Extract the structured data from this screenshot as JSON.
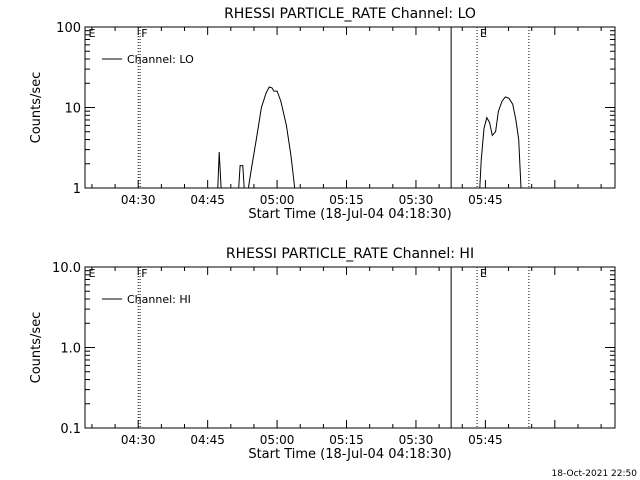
{
  "footer_timestamp": "18-Oct-2021 22:50",
  "chart_data": [
    {
      "type": "line",
      "title": "RHESSI PARTICLE_RATE Channel: LO",
      "xlabel": "Start Time (18-Jul-04 04:18:30)",
      "ylabel": "Counts/sec",
      "y_scale": "log",
      "xlim_min": [
        258.5,
        373
      ],
      "ylim": [
        1,
        100
      ],
      "x_ticks": [
        {
          "min": 270,
          "label": "04:30"
        },
        {
          "min": 285,
          "label": "04:45"
        },
        {
          "min": 300,
          "label": "05:00"
        },
        {
          "min": 315,
          "label": "05:15"
        },
        {
          "min": 330,
          "label": "05:30"
        },
        {
          "min": 345,
          "label": "05:45"
        }
      ],
      "y_ticks": [
        {
          "value": 1,
          "label": "1"
        },
        {
          "value": 10,
          "label": "10"
        },
        {
          "value": 100,
          "label": "100"
        }
      ],
      "grid": false,
      "legend": {
        "position": "top-left",
        "label": "Channel: LO"
      },
      "annotations": [
        {
          "x_min": 258.6,
          "label": "E",
          "style": "none"
        },
        {
          "x_min": 270.0,
          "label": "F",
          "style": "dotted"
        },
        {
          "x_min": 270.4,
          "label": "",
          "style": "dotted"
        },
        {
          "x_min": 337.6,
          "label": "",
          "style": "solid"
        },
        {
          "x_min": 343.2,
          "label": "E",
          "style": "dotted"
        },
        {
          "x_min": 354.4,
          "label": "",
          "style": "dotted"
        }
      ],
      "series": [
        {
          "name": "Channel: LO",
          "segments": [
            [
              [
                287.2,
                1
              ],
              [
                287.5,
                2.8
              ],
              [
                287.9,
                1
              ]
            ],
            [
              [
                291.7,
                1
              ],
              [
                292.0,
                1.9
              ],
              [
                292.6,
                1.9
              ],
              [
                292.9,
                1
              ]
            ],
            [
              [
                293.8,
                1
              ],
              [
                294.5,
                1.8
              ],
              [
                295.5,
                4
              ],
              [
                296.6,
                10
              ],
              [
                297.6,
                15
              ],
              [
                298.3,
                18
              ],
              [
                298.9,
                17.5
              ],
              [
                299.3,
                16
              ],
              [
                300.0,
                16
              ],
              [
                300.8,
                12
              ],
              [
                302.0,
                6
              ],
              [
                303.0,
                2.5
              ],
              [
                303.8,
                1
              ]
            ],
            [
              [
                343.8,
                1
              ],
              [
                344.1,
                2.2
              ],
              [
                344.7,
                5.5
              ],
              [
                345.3,
                7.5
              ],
              [
                345.9,
                6.5
              ],
              [
                346.5,
                4.5
              ],
              [
                347.2,
                5
              ],
              [
                347.8,
                9
              ],
              [
                348.6,
                12
              ],
              [
                349.3,
                13.5
              ],
              [
                350.1,
                13
              ],
              [
                350.9,
                11
              ],
              [
                351.6,
                7
              ],
              [
                352.2,
                4
              ],
              [
                352.7,
                1
              ]
            ]
          ]
        }
      ]
    },
    {
      "type": "line",
      "title": "RHESSI PARTICLE_RATE Channel: HI",
      "xlabel": "Start Time (18-Jul-04 04:18:30)",
      "ylabel": "Counts/sec",
      "y_scale": "log",
      "xlim_min": [
        258.5,
        373
      ],
      "ylim": [
        0.1,
        10
      ],
      "x_ticks": [
        {
          "min": 270,
          "label": "04:30"
        },
        {
          "min": 285,
          "label": "04:45"
        },
        {
          "min": 300,
          "label": "05:00"
        },
        {
          "min": 315,
          "label": "05:15"
        },
        {
          "min": 330,
          "label": "05:30"
        },
        {
          "min": 345,
          "label": "05:45"
        }
      ],
      "y_ticks": [
        {
          "value": 0.1,
          "label": "0.1"
        },
        {
          "value": 1,
          "label": "1.0"
        },
        {
          "value": 10,
          "label": "10.0"
        }
      ],
      "grid": false,
      "legend": {
        "position": "top-left",
        "label": "Channel: HI"
      },
      "annotations": [
        {
          "x_min": 258.6,
          "label": "E",
          "style": "none"
        },
        {
          "x_min": 270.0,
          "label": "F",
          "style": "dotted"
        },
        {
          "x_min": 270.4,
          "label": "",
          "style": "dotted"
        },
        {
          "x_min": 337.6,
          "label": "",
          "style": "solid"
        },
        {
          "x_min": 343.2,
          "label": "E",
          "style": "dotted"
        },
        {
          "x_min": 354.4,
          "label": "",
          "style": "dotted"
        }
      ],
      "series": [
        {
          "name": "Channel: HI",
          "segments": []
        }
      ]
    }
  ]
}
